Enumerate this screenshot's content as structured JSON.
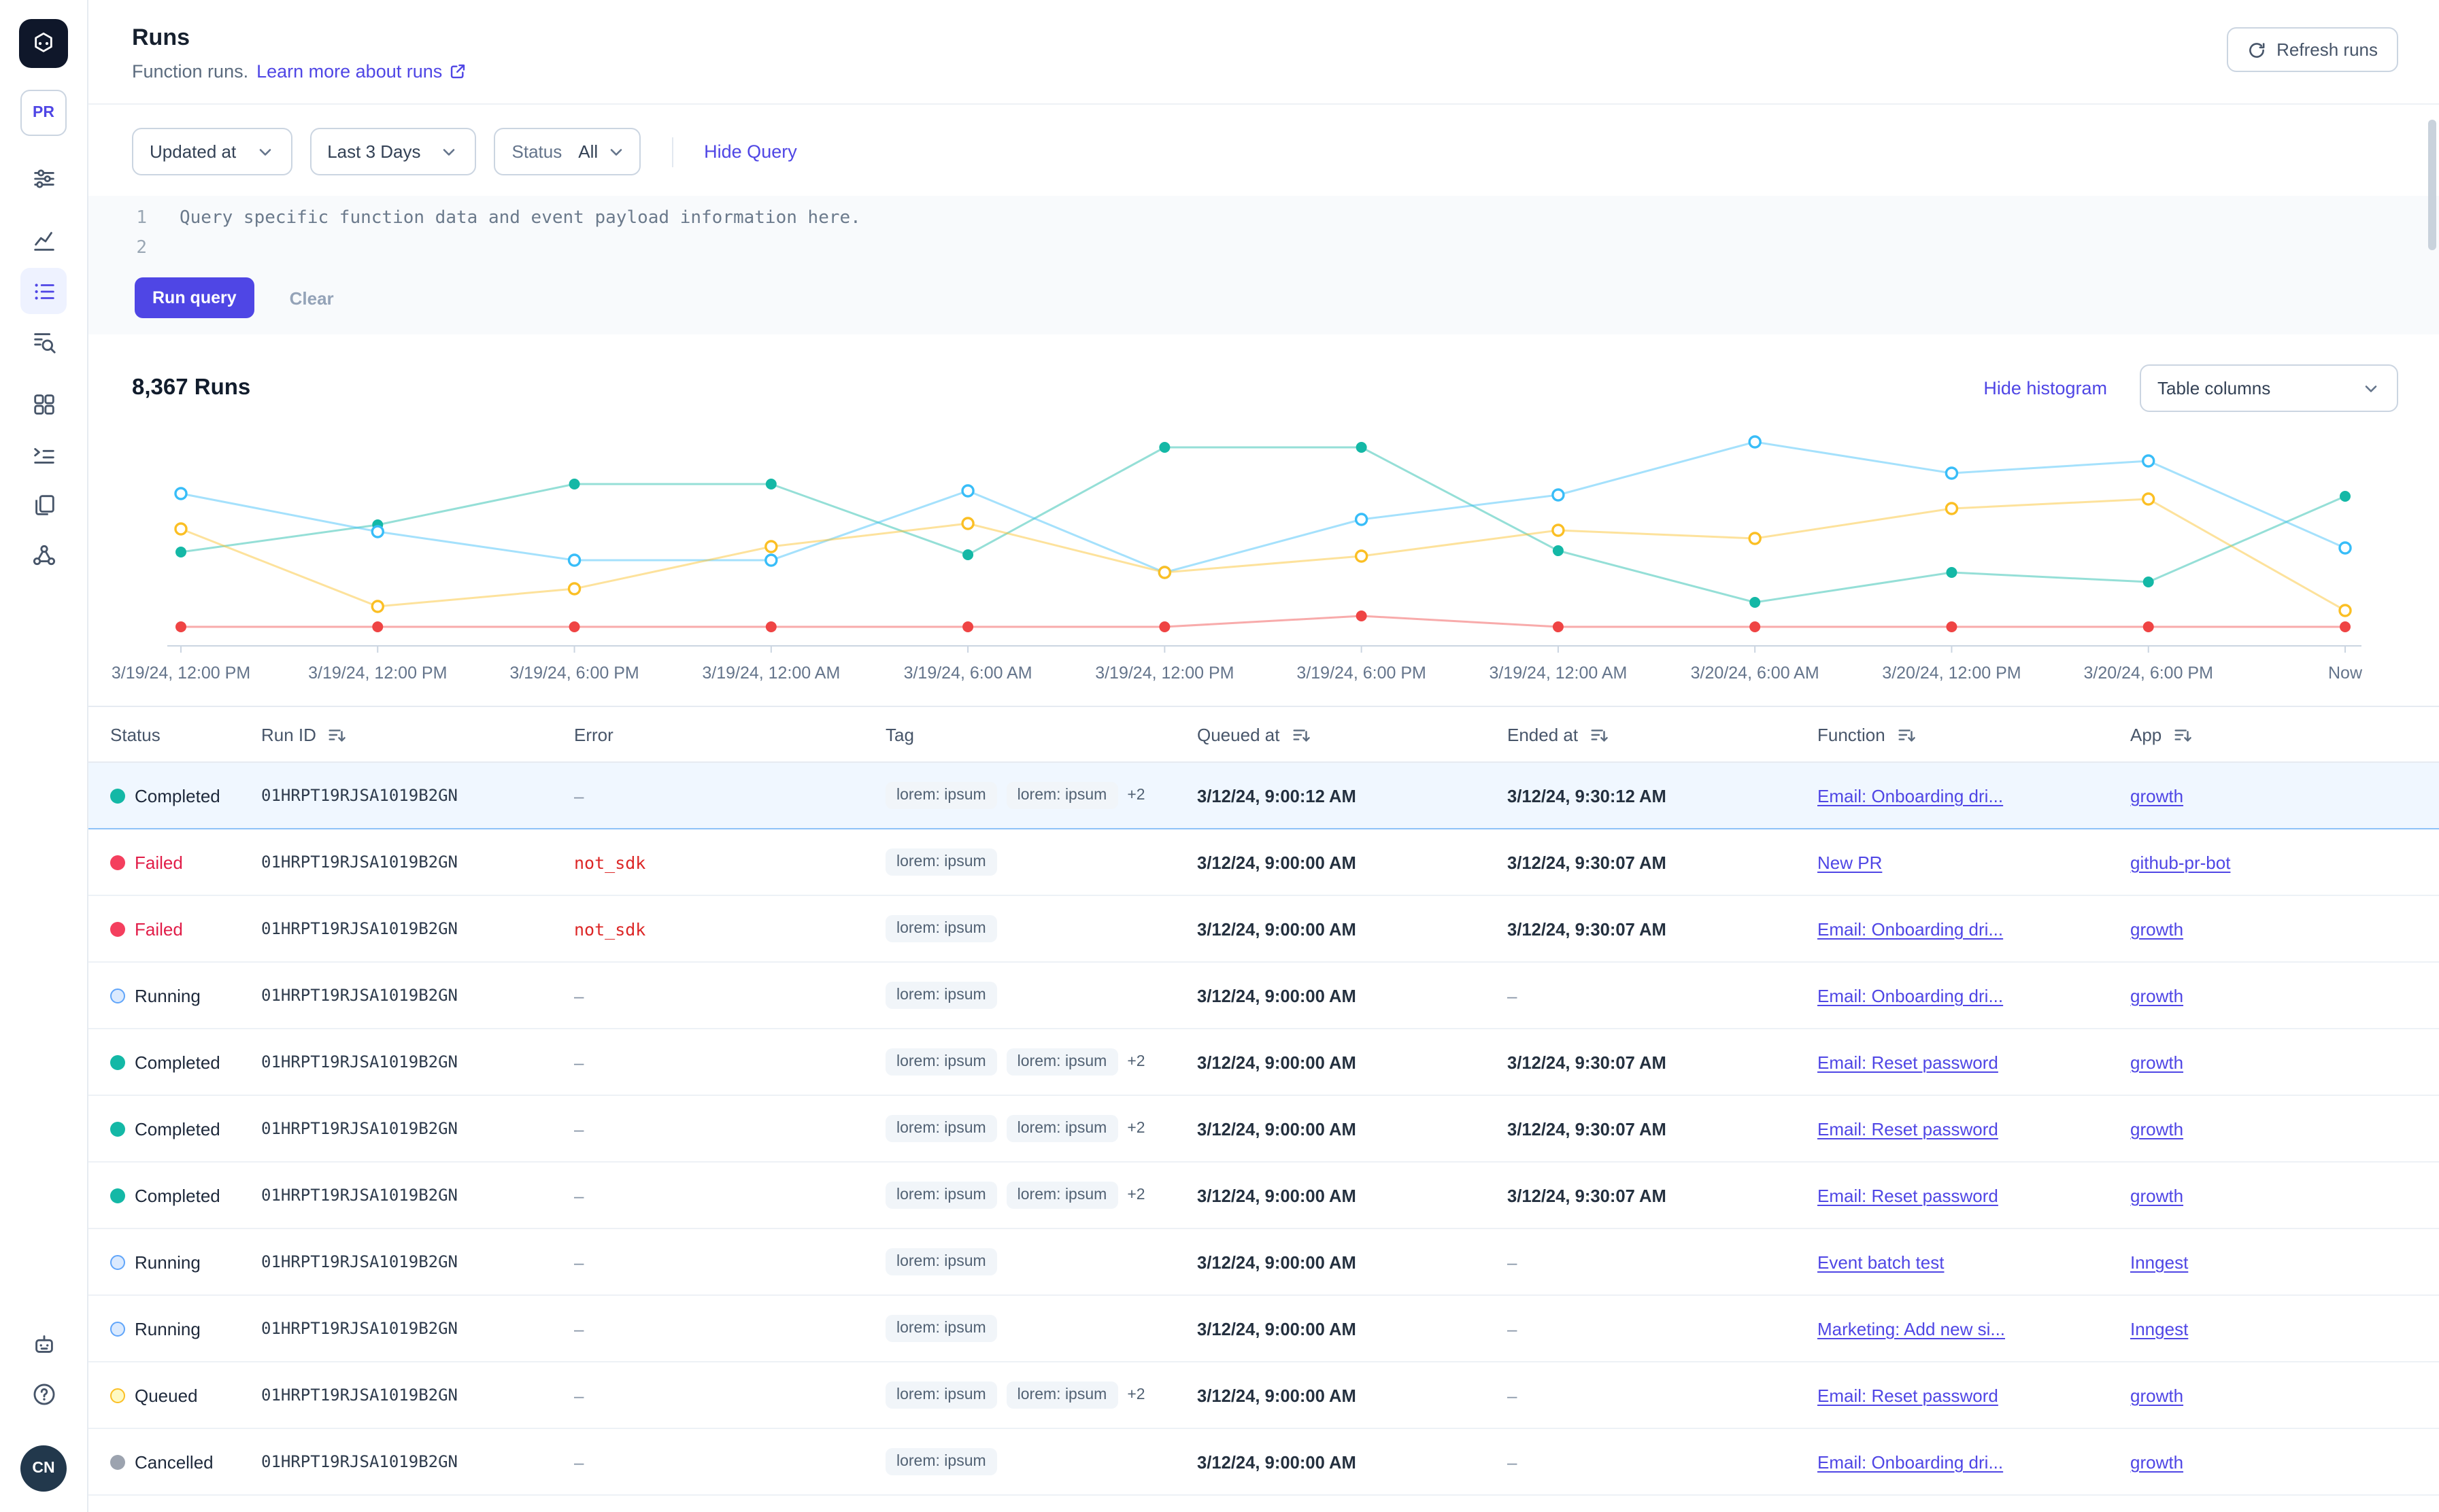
{
  "colors": {
    "accent": "#4f46e5",
    "selected_row_bg": "#f0f7ff"
  },
  "sidebar": {
    "environment_badge": "PR",
    "user_initials": "CN",
    "nav_icons": [
      {
        "id": "sliders",
        "group": 1,
        "active": false
      },
      {
        "id": "line-chart",
        "group": 2,
        "active": false
      },
      {
        "id": "list",
        "group": 2,
        "active": true
      },
      {
        "id": "search-doc",
        "group": 2,
        "active": false
      },
      {
        "id": "grid",
        "group": 3,
        "active": false
      },
      {
        "id": "indent-list",
        "group": 3,
        "active": false
      },
      {
        "id": "copy",
        "group": 3,
        "active": false
      },
      {
        "id": "webhook",
        "group": 3,
        "active": false
      }
    ],
    "bottom_icons": [
      {
        "id": "robot"
      },
      {
        "id": "help"
      }
    ]
  },
  "header": {
    "title": "Runs",
    "subtitle": "Function runs.",
    "learn_more_link": "Learn more about runs",
    "refresh_button": "Refresh runs"
  },
  "filters": {
    "sort_field": "Updated at",
    "time_range": "Last 3 Days",
    "status_label": "Status",
    "status_value": "All",
    "hide_query_link": "Hide Query"
  },
  "query_editor": {
    "lines": [
      {
        "number": "1",
        "text": "Query specific function data and event payload information here."
      },
      {
        "number": "2",
        "text": ""
      }
    ],
    "run_button": "Run query",
    "clear_button": "Clear"
  },
  "results": {
    "count": "8,367 Runs",
    "hide_histogram_link": "Hide histogram",
    "table_columns_button": "Table columns"
  },
  "chart_data": {
    "type": "line",
    "title": "",
    "xlabel": "",
    "ylabel": "",
    "y_axis": "hidden",
    "ylim": [
      0,
      160
    ],
    "grid": false,
    "legend": "none",
    "x_tick_labels": [
      "3/19/24, 12:00 PM",
      "3/19/24, 12:00 PM",
      "3/19/24, 6:00 PM",
      "3/19/24, 12:00 AM",
      "3/19/24, 6:00 AM",
      "3/19/24, 12:00 PM",
      "3/19/24, 6:00 PM",
      "3/19/24, 12:00 AM",
      "3/20/24, 6:00 AM",
      "3/20/24, 12:00 PM",
      "3/20/24, 6:00 PM",
      "Now"
    ],
    "series": [
      {
        "name": "teal",
        "color": "#14b8a6",
        "dot": "solid",
        "values": [
          65,
          85,
          115,
          115,
          63,
          142,
          142,
          66,
          28,
          50,
          43,
          106
        ]
      },
      {
        "name": "sky-blue",
        "color": "#38bdf8",
        "dot": "hollow",
        "values": [
          108,
          80,
          59,
          59,
          110,
          50,
          89,
          107,
          146,
          123,
          132,
          68
        ]
      },
      {
        "name": "amber",
        "color": "#fbbf24",
        "dot": "hollow",
        "values": [
          82,
          25,
          38,
          69,
          86,
          50,
          62,
          81,
          75,
          97,
          104,
          22
        ]
      },
      {
        "name": "red",
        "color": "#ef4444",
        "dot": "solid",
        "values": [
          10,
          10,
          10,
          10,
          10,
          10,
          18,
          10,
          10,
          10,
          10,
          10
        ]
      }
    ]
  },
  "table": {
    "columns": [
      {
        "label": "Status",
        "sortable": false
      },
      {
        "label": "Run ID",
        "sortable": true
      },
      {
        "label": "Error",
        "sortable": false
      },
      {
        "label": "Tag",
        "sortable": false
      },
      {
        "label": "Queued at",
        "sortable": true
      },
      {
        "label": "Ended at",
        "sortable": true
      },
      {
        "label": "Function",
        "sortable": true
      },
      {
        "label": "App",
        "sortable": true
      }
    ],
    "status_styles": {
      "Completed": {
        "dot": "#14b8a6",
        "style": "solid",
        "text": "#1e293b"
      },
      "Failed": {
        "dot": "#f43f5e",
        "style": "solid",
        "text": "#e11d48"
      },
      "Running": {
        "dot": "#60a5fa",
        "style": "ring",
        "ring_fill": "#dbeafe",
        "text": "#1e293b"
      },
      "Queued": {
        "dot": "#fbbf24",
        "style": "ring",
        "ring_fill": "#fef9c3",
        "text": "#1e293b"
      },
      "Cancelled": {
        "dot": "#9ca3af",
        "style": "solid",
        "text": "#1e293b"
      }
    },
    "rows": [
      {
        "status": "Completed",
        "run_id": "01HRPT19RJSA1019B2GN",
        "error": "–",
        "tags": [
          "lorem: ipsum",
          "lorem: ipsum"
        ],
        "tags_more": "+2",
        "queued_at": "3/12/24, 9:00:12 AM",
        "ended_at": "3/12/24, 9:30:12 AM",
        "function": "Email: Onboarding dri...",
        "app": "growth",
        "selected": true
      },
      {
        "status": "Failed",
        "run_id": "01HRPT19RJSA1019B2GN",
        "error": "not_sdk",
        "tags": [
          "lorem: ipsum"
        ],
        "tags_more": null,
        "queued_at": "3/12/24, 9:00:00 AM",
        "ended_at": "3/12/24, 9:30:07 AM",
        "function": "New PR",
        "app": "github-pr-bot",
        "selected": false
      },
      {
        "status": "Failed",
        "run_id": "01HRPT19RJSA1019B2GN",
        "error": "not_sdk",
        "tags": [
          "lorem: ipsum"
        ],
        "tags_more": null,
        "queued_at": "3/12/24, 9:00:00 AM",
        "ended_at": "3/12/24, 9:30:07 AM",
        "function": "Email: Onboarding dri...",
        "app": "growth",
        "selected": false
      },
      {
        "status": "Running",
        "run_id": "01HRPT19RJSA1019B2GN",
        "error": "–",
        "tags": [
          "lorem: ipsum"
        ],
        "tags_more": null,
        "queued_at": "3/12/24, 9:00:00 AM",
        "ended_at": "–",
        "function": "Email: Onboarding dri...",
        "app": "growth",
        "selected": false
      },
      {
        "status": "Completed",
        "run_id": "01HRPT19RJSA1019B2GN",
        "error": "–",
        "tags": [
          "lorem: ipsum",
          "lorem: ipsum"
        ],
        "tags_more": "+2",
        "queued_at": "3/12/24, 9:00:00 AM",
        "ended_at": "3/12/24, 9:30:07 AM",
        "function": "Email: Reset password",
        "app": "growth",
        "selected": false
      },
      {
        "status": "Completed",
        "run_id": "01HRPT19RJSA1019B2GN",
        "error": "–",
        "tags": [
          "lorem: ipsum",
          "lorem: ipsum"
        ],
        "tags_more": "+2",
        "queued_at": "3/12/24, 9:00:00 AM",
        "ended_at": "3/12/24, 9:30:07 AM",
        "function": "Email: Reset password",
        "app": "growth",
        "selected": false
      },
      {
        "status": "Completed",
        "run_id": "01HRPT19RJSA1019B2GN",
        "error": "–",
        "tags": [
          "lorem: ipsum",
          "lorem: ipsum"
        ],
        "tags_more": "+2",
        "queued_at": "3/12/24, 9:00:00 AM",
        "ended_at": "3/12/24, 9:30:07 AM",
        "function": "Email: Reset password",
        "app": "growth",
        "selected": false
      },
      {
        "status": "Running",
        "run_id": "01HRPT19RJSA1019B2GN",
        "error": "–",
        "tags": [
          "lorem: ipsum"
        ],
        "tags_more": null,
        "queued_at": "3/12/24, 9:00:00 AM",
        "ended_at": "–",
        "function": "Event batch test",
        "app": "Inngest",
        "selected": false
      },
      {
        "status": "Running",
        "run_id": "01HRPT19RJSA1019B2GN",
        "error": "–",
        "tags": [
          "lorem: ipsum"
        ],
        "tags_more": null,
        "queued_at": "3/12/24, 9:00:00 AM",
        "ended_at": "–",
        "function": "Marketing: Add new si...",
        "app": "Inngest",
        "selected": false
      },
      {
        "status": "Queued",
        "run_id": "01HRPT19RJSA1019B2GN",
        "error": "–",
        "tags": [
          "lorem: ipsum",
          "lorem: ipsum"
        ],
        "tags_more": "+2",
        "queued_at": "3/12/24, 9:00:00 AM",
        "ended_at": "–",
        "function": "Email: Reset password",
        "app": "growth",
        "selected": false
      },
      {
        "status": "Cancelled",
        "run_id": "01HRPT19RJSA1019B2GN",
        "error": "–",
        "tags": [
          "lorem: ipsum"
        ],
        "tags_more": null,
        "queued_at": "3/12/24, 9:00:00 AM",
        "ended_at": "–",
        "function": "Email: Onboarding dri...",
        "app": "growth",
        "selected": false
      }
    ]
  }
}
